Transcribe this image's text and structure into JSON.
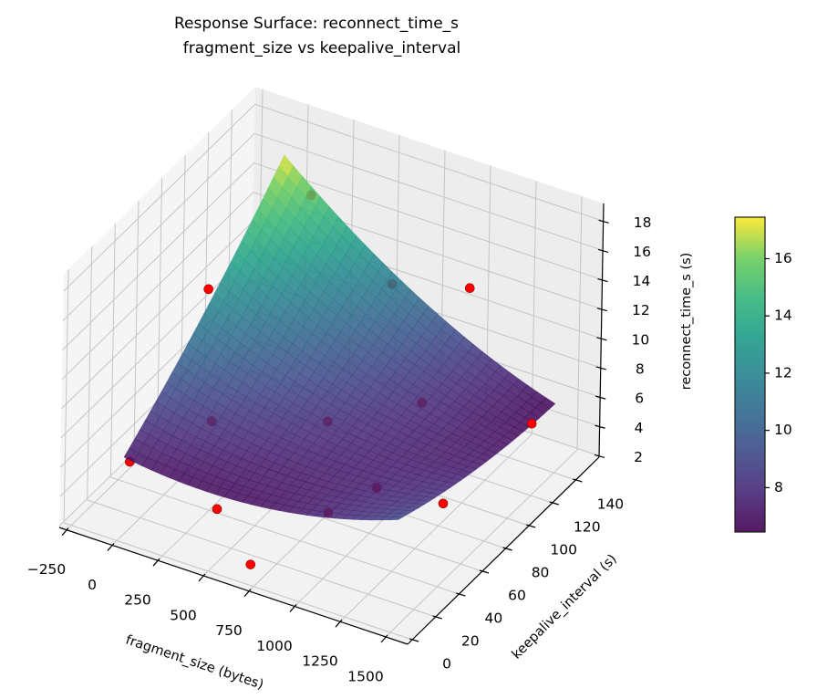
{
  "chart_data": {
    "type": "surface3d",
    "title_line1": "Response Surface: reconnect_time_s",
    "title_line2": "fragment_size vs keepalive_interval",
    "xlabel": "fragment_size (bytes)",
    "ylabel": "keepalive_interval (s)",
    "zlabel": "reconnect_time_s (s)",
    "colorbar_label": "reconnect_time_s (s)",
    "colormap": "viridis",
    "xlim": [
      -290,
      1620
    ],
    "ylim": [
      -4,
      160
    ],
    "zlim": [
      1.9,
      19.2
    ],
    "xticks": [
      -250,
      0,
      250,
      500,
      750,
      1000,
      1250,
      1500
    ],
    "xtick_labels": [
      "−250",
      "0",
      "250",
      "500",
      "750",
      "1000",
      "1250",
      "1500"
    ],
    "yticks": [
      0,
      20,
      40,
      60,
      80,
      100,
      120,
      140
    ],
    "ytick_labels": [
      "0",
      "20",
      "40",
      "60",
      "80",
      "100",
      "120",
      "140"
    ],
    "zticks": [
      2,
      4,
      6,
      8,
      10,
      12,
      14,
      16,
      18
    ],
    "ztick_labels": [
      "2",
      "4",
      "6",
      "8",
      "10",
      "12",
      "14",
      "16",
      "18"
    ],
    "colorbar_range": [
      6.45,
      17.45
    ],
    "colorbar_ticks": [
      8,
      10,
      12,
      14,
      16
    ],
    "colorbar_tick_labels": [
      "8",
      "10",
      "12",
      "14",
      "16"
    ],
    "surface": {
      "x_range": [
        0,
        1500
      ],
      "y_range": [
        5,
        140
      ],
      "corner_values": {
        "x0_y0": 7.2,
        "x1_y0": 9.2,
        "x0_y1": 17.3,
        "x1_y1": 6.6
      }
    },
    "points": [
      {
        "x": 100,
        "y": 60,
        "z": 14.8
      },
      {
        "x": 1024,
        "y": 140,
        "z": 12.5
      },
      {
        "x": 1500,
        "y": 120,
        "z": 6.8
      },
      {
        "x": 700,
        "y": 5,
        "z": 2.8
      },
      {
        "x": 150,
        "y": 140,
        "z": 15.2
      },
      {
        "x": 600,
        "y": 140,
        "z": 11.0
      },
      {
        "x": 1024,
        "y": 100,
        "z": 7.8
      },
      {
        "x": 0,
        "y": 10,
        "z": 6.5
      },
      {
        "x": 256,
        "y": 40,
        "z": 8.0
      },
      {
        "x": 700,
        "y": 70,
        "z": 7.5
      },
      {
        "x": 512,
        "y": 5,
        "z": 5.8
      },
      {
        "x": 1024,
        "y": 20,
        "z": 6.5
      },
      {
        "x": 1100,
        "y": 50,
        "z": 6.2
      },
      {
        "x": 1400,
        "y": 60,
        "z": 5.6
      }
    ],
    "point_color": "#ff0000",
    "grid": true
  }
}
